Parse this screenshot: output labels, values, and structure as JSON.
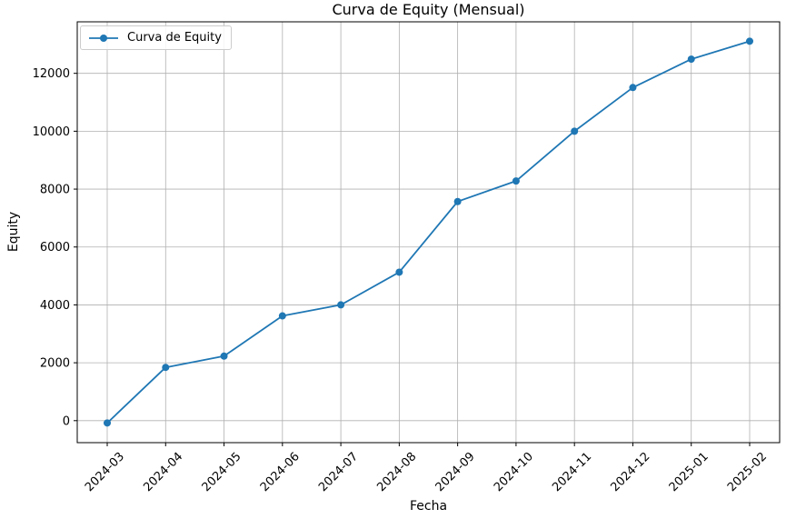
{
  "chart_data": {
    "type": "line",
    "title": "Curva de Equity (Mensual)",
    "xlabel": "Fecha",
    "ylabel": "Equity",
    "categories": [
      "2024-03",
      "2024-04",
      "2024-05",
      "2024-06",
      "2024-07",
      "2024-08",
      "2024-09",
      "2024-10",
      "2024-11",
      "2024-12",
      "2025-01",
      "2025-02"
    ],
    "series": [
      {
        "name": "Curva de Equity",
        "color": "#1f77b4",
        "marker": "circle",
        "values": [
          -80,
          1840,
          2230,
          3620,
          4000,
          5130,
          7570,
          8280,
          10000,
          11510,
          12490,
          13110
        ]
      }
    ],
    "yticks": [
      0,
      2000,
      4000,
      6000,
      8000,
      10000,
      12000
    ],
    "ylim": [
      -760,
      13780
    ],
    "grid": true,
    "grid_color": "#b0b0b0",
    "spine_color": "#000000",
    "text_color": "#000000",
    "background_color": "#ffffff",
    "legend_position": "upper left",
    "x_tick_rotation": 45
  }
}
